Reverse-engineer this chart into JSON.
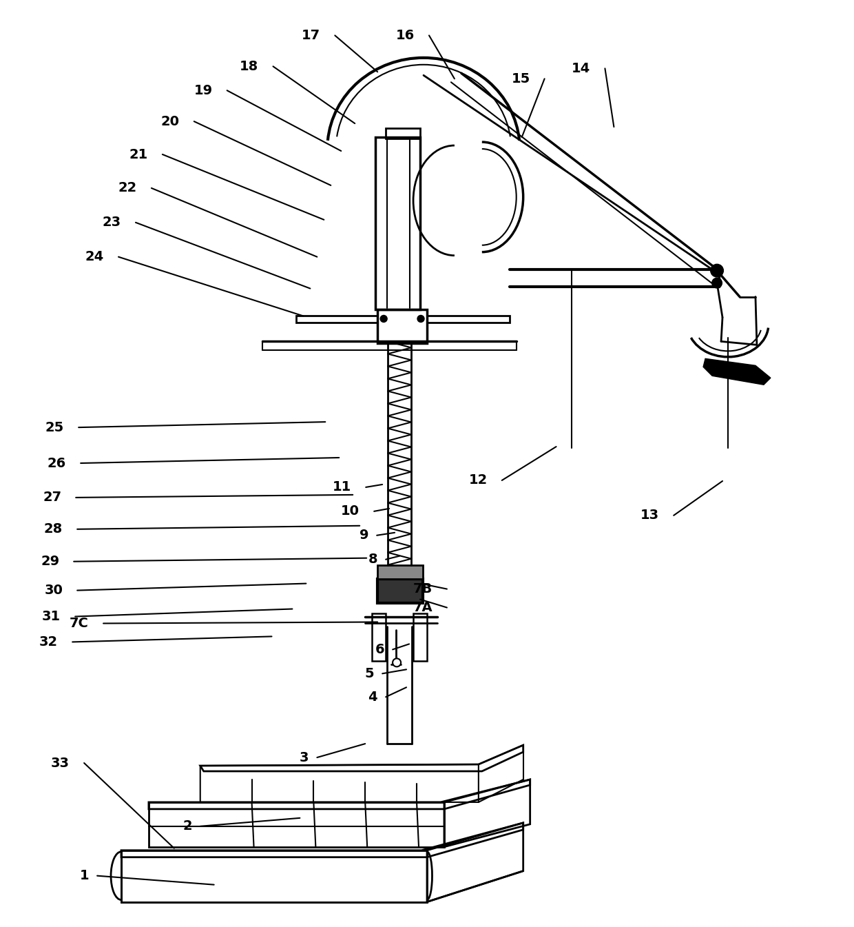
{
  "bg": "#ffffff",
  "lc": "#000000",
  "figsize": [
    12.4,
    13.45
  ],
  "dpi": 100,
  "annotations": [
    [
      "1",
      128,
      1272,
      310,
      1285
    ],
    [
      "2",
      278,
      1200,
      435,
      1188
    ],
    [
      "3",
      448,
      1100,
      530,
      1080
    ],
    [
      "4",
      548,
      1012,
      590,
      998
    ],
    [
      "5",
      543,
      978,
      590,
      972
    ],
    [
      "6",
      558,
      943,
      594,
      935
    ],
    [
      "7A",
      628,
      882,
      610,
      870
    ],
    [
      "7B",
      628,
      855,
      615,
      848
    ],
    [
      "7C",
      128,
      905,
      548,
      903
    ],
    [
      "8",
      548,
      812,
      580,
      807
    ],
    [
      "9",
      535,
      777,
      573,
      773
    ],
    [
      "10",
      522,
      742,
      565,
      738
    ],
    [
      "11",
      510,
      707,
      555,
      703
    ],
    [
      "12",
      708,
      697,
      808,
      648
    ],
    [
      "13",
      958,
      748,
      1050,
      698
    ],
    [
      "14",
      858,
      98,
      892,
      183
    ],
    [
      "15",
      770,
      113,
      758,
      198
    ],
    [
      "16",
      602,
      50,
      660,
      113
    ],
    [
      "17",
      465,
      50,
      548,
      103
    ],
    [
      "18",
      375,
      95,
      515,
      178
    ],
    [
      "19",
      308,
      130,
      495,
      218
    ],
    [
      "20",
      260,
      175,
      480,
      268
    ],
    [
      "21",
      214,
      223,
      470,
      318
    ],
    [
      "22",
      198,
      272,
      460,
      372
    ],
    [
      "23",
      175,
      322,
      450,
      418
    ],
    [
      "24",
      150,
      372,
      440,
      458
    ],
    [
      "25",
      92,
      620,
      472,
      612
    ],
    [
      "26",
      95,
      672,
      492,
      664
    ],
    [
      "27",
      88,
      722,
      512,
      718
    ],
    [
      "28",
      90,
      768,
      522,
      763
    ],
    [
      "29",
      85,
      815,
      532,
      810
    ],
    [
      "30",
      90,
      857,
      444,
      847
    ],
    [
      "31",
      87,
      895,
      424,
      884
    ],
    [
      "32",
      83,
      932,
      394,
      924
    ],
    [
      "33",
      100,
      1108,
      252,
      1232
    ]
  ]
}
